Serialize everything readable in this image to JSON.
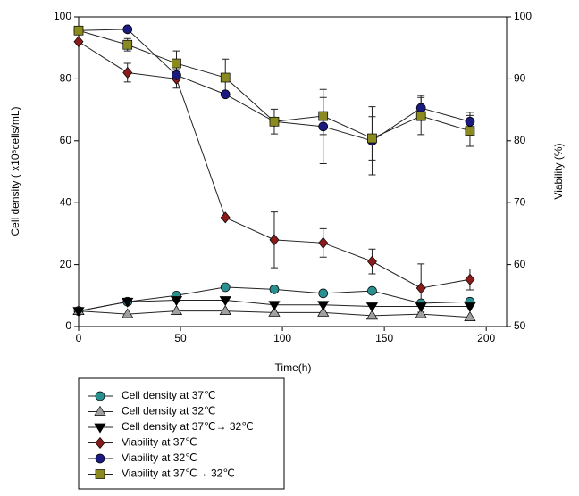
{
  "chart_data": {
    "type": "line",
    "x_label": "Time(h)",
    "y_label": "Cell density ( x10⁵cells/mL)",
    "y2_label": "Viability (%)",
    "x": [
      0,
      24,
      48,
      72,
      96,
      120,
      144,
      168,
      192
    ],
    "xlim": [
      0,
      210
    ],
    "xticks": [
      0,
      50,
      100,
      150,
      200
    ],
    "ylim": [
      0,
      100
    ],
    "yticks": [
      0,
      20,
      40,
      60,
      80,
      100
    ],
    "y2lim": [
      50,
      100
    ],
    "y2ticks": [
      50,
      60,
      70,
      80,
      90,
      100
    ],
    "series": [
      {
        "name": "Cell density at 37℃",
        "color": "#2a8f8f",
        "marker": "circle",
        "values": [
          5,
          8,
          10,
          12.7,
          12,
          10.7,
          11.5,
          7.5,
          8
        ]
      },
      {
        "name": "Cell density at 32℃",
        "color": "#a0a0a0",
        "marker": "triangle-up",
        "values": [
          5,
          4,
          5,
          5,
          4.5,
          4.5,
          3.5,
          4,
          3
        ]
      },
      {
        "name": "Cell density at 37℃→ 32℃",
        "color": "#000000",
        "marker": "triangle-down",
        "values": [
          5,
          8,
          8.5,
          8.5,
          7,
          7,
          6.5,
          6.5,
          6.5
        ]
      },
      {
        "name": "Viability at 37℃",
        "color": "#8b1a1a",
        "marker": "diamond",
        "axis": "y2",
        "values": [
          96,
          91,
          90,
          67.6,
          64,
          63.5,
          60.5,
          56.2,
          57.6
        ],
        "errors": [
          0,
          1.5,
          1.5,
          0,
          4.5,
          2.3,
          2,
          3.9,
          1.7
        ]
      },
      {
        "name": "Viability at 32℃",
        "color": "#1a1a80",
        "marker": "circle",
        "axis": "y2",
        "values": [
          97.8,
          98,
          90.6,
          87.5,
          83.1,
          82.3,
          80,
          85.3,
          83.1
        ],
        "errors": [
          0,
          0,
          0,
          0,
          0,
          6,
          5.5,
          2,
          1.5
        ]
      },
      {
        "name": "Viability at 37℃→ 32℃",
        "color": "#8a8a20",
        "marker": "square",
        "axis": "y2",
        "values": [
          97.8,
          95.5,
          92.5,
          90.2,
          83.1,
          84,
          80.4,
          84,
          81.6
        ],
        "errors": [
          0,
          1,
          2,
          3,
          2,
          3,
          3.5,
          3,
          2.5
        ]
      }
    ]
  }
}
